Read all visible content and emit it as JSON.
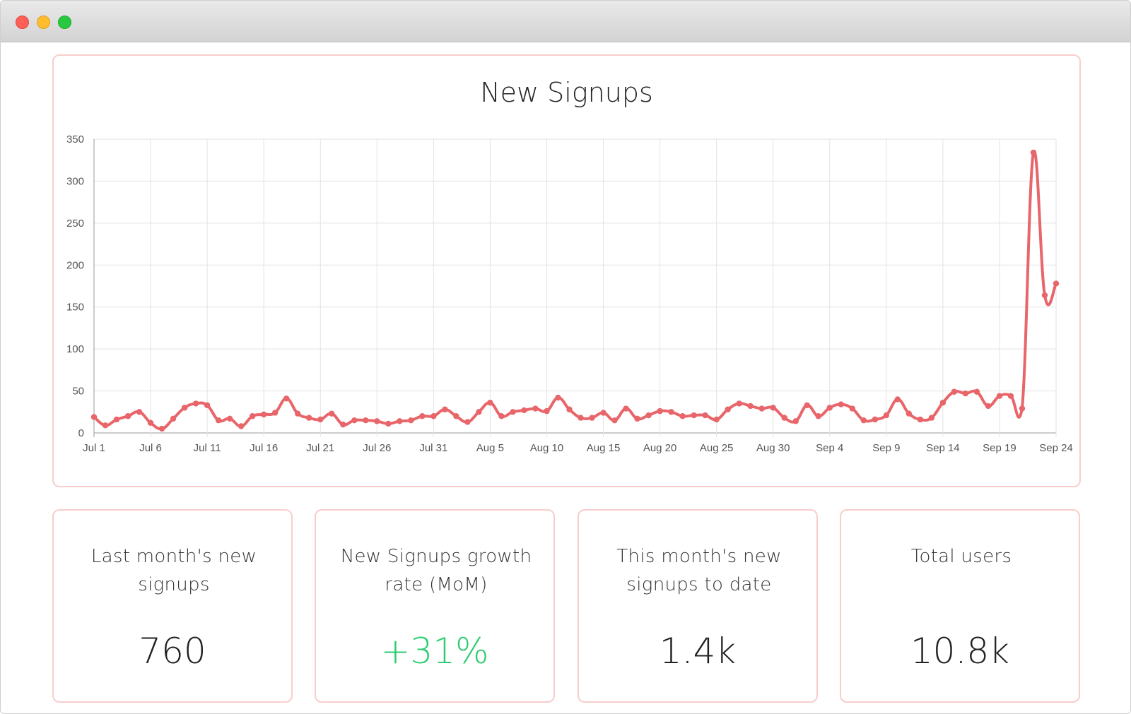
{
  "window": {
    "title": ""
  },
  "chart_data": {
    "type": "line",
    "title": "New Signups",
    "xlabel": "",
    "ylabel": "",
    "ylim": [
      0,
      350
    ],
    "yticks": [
      0,
      50,
      100,
      150,
      200,
      250,
      300,
      350
    ],
    "xticks": [
      "Jul 1",
      "Jul 6",
      "Jul 11",
      "Jul 16",
      "Jul 21",
      "Jul 26",
      "Jul 31",
      "Aug 5",
      "Aug 10",
      "Aug 15",
      "Aug 20",
      "Aug 25",
      "Aug 30",
      "Sep 4",
      "Sep 9",
      "Sep 14",
      "Sep 19",
      "Sep 24"
    ],
    "grid": true,
    "legend": "none",
    "line_color": "#e8656a",
    "x_start": "Jul 1",
    "x_end": "Sep 24",
    "series": [
      {
        "values": [
          19,
          9,
          16,
          20,
          25,
          12,
          5,
          17,
          30,
          35,
          33,
          15,
          17,
          8,
          20,
          22,
          24,
          41,
          23,
          18,
          16,
          23,
          10,
          15,
          15,
          14,
          11,
          14,
          15,
          20,
          20,
          28,
          20,
          13,
          25,
          36,
          20,
          25,
          27,
          29,
          26,
          42,
          28,
          18,
          18,
          24,
          15,
          29,
          17,
          21,
          26,
          25,
          20,
          21,
          21,
          16,
          28,
          35,
          32,
          29,
          30,
          18,
          14,
          33,
          20,
          30,
          34,
          29,
          15,
          16,
          21,
          40,
          23,
          16,
          18,
          36,
          49,
          47,
          49,
          32,
          44,
          44,
          29,
          334,
          164,
          178
        ]
      }
    ]
  },
  "cards": [
    {
      "label": "Last month's new signups",
      "value": "760",
      "tone": "neutral"
    },
    {
      "label": "New Signups growth rate (MoM)",
      "value": "+31%",
      "tone": "positive",
      "value_color": "#2ecc71"
    },
    {
      "label": "This month's new signups to date",
      "value": "1.4k",
      "tone": "neutral"
    },
    {
      "label": "Total users",
      "value": "10.8k",
      "tone": "neutral"
    }
  ]
}
